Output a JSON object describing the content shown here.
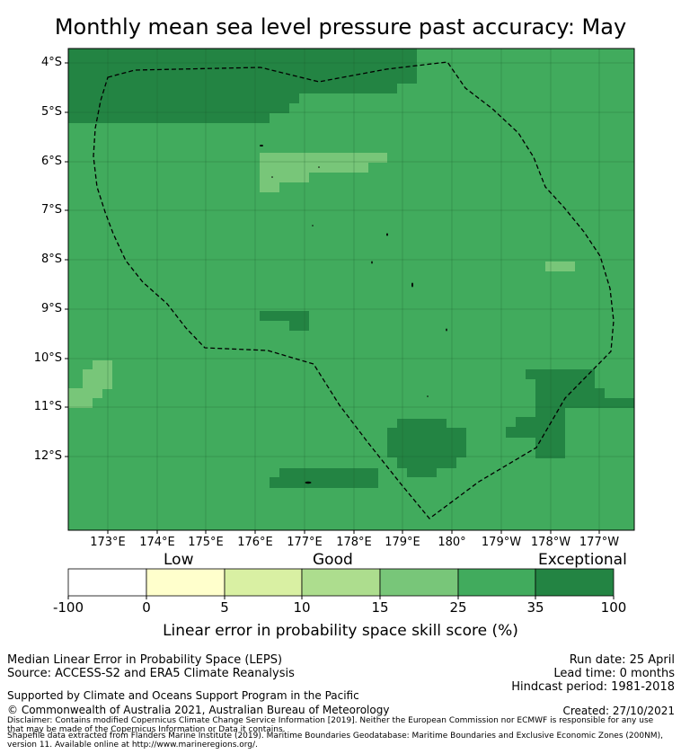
{
  "title": "Monthly mean sea level pressure past accuracy: May",
  "map": {
    "lat_labels": [
      "4°S",
      "5°S",
      "6°S",
      "7°S",
      "8°S",
      "9°S",
      "10°S",
      "11°S",
      "12°S"
    ],
    "lon_labels": [
      "173°E",
      "174°E",
      "175°E",
      "176°E",
      "177°E",
      "178°E",
      "179°E",
      "180°",
      "179°W",
      "178°W",
      "177°W"
    ],
    "category_scale": {
      "low": "#ffffff",
      "very_low_good": "#ffffcc",
      "good_low": "#d9f0a3",
      "good": "#addd8e",
      "good_high": "#78c679",
      "high": "#41ab5d",
      "exceptional": "#238443"
    },
    "background_category": "high",
    "boundary_style": "dashed"
  },
  "colorbar": {
    "categories": {
      "low": "Low",
      "good": "Good",
      "exceptional": "Exceptional"
    },
    "ticks": [
      "-100",
      "0",
      "5",
      "10",
      "15",
      "25",
      "35",
      "100"
    ],
    "colors": [
      "#ffffff",
      "#ffffcc",
      "#d9f0a3",
      "#addd8e",
      "#78c679",
      "#41ab5d",
      "#238443"
    ],
    "label": "Linear error in probability space skill score (%)"
  },
  "footer": {
    "method": "Median Linear Error in Probability Space (LEPS)",
    "source": "Source: ACCESS-S2 and ERA5 Climate Reanalysis",
    "run_date": "Run date: 25 April",
    "lead_time": "Lead time: 0 months",
    "hindcast": "Hindcast period: 1981-2018",
    "support": "Supported by Climate and Oceans Support Program in the Pacific",
    "copyright": "© Commonwealth of Australia 2021, Australian Bureau of Meteorology",
    "created": "Created: 27/10/2021",
    "disclaimer_1": "Disclaimer: Contains modified Copernicus Climate Change Service Information [2019]. Neither the European Commission nor ECMWF is responsible for any use",
    "disclaimer_2": "that may be made of the Copernicus Information or Data it contains.",
    "shapefile_1": "Shapefile data extracted from Flanders Marine Institute (2019). Maritime Boundaries Geodatabase: Maritime Boundaries and Exclusive Economic Zones (200NM),",
    "shapefile_2": "version 11. Available online at http://www.marineregions.org/."
  }
}
